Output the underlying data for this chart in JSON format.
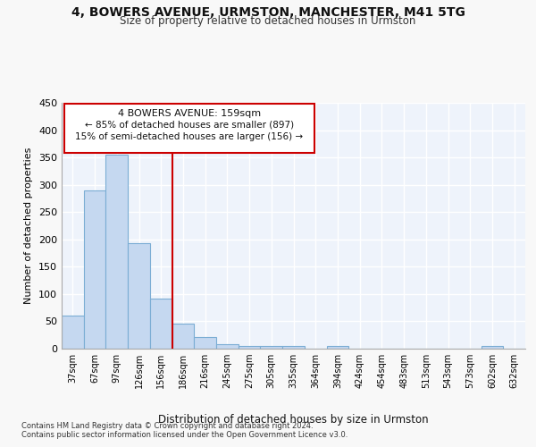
{
  "title1": "4, BOWERS AVENUE, URMSTON, MANCHESTER, M41 5TG",
  "title2": "Size of property relative to detached houses in Urmston",
  "xlabel": "Distribution of detached houses by size in Urmston",
  "ylabel": "Number of detached properties",
  "bar_labels": [
    "37sqm",
    "67sqm",
    "97sqm",
    "126sqm",
    "156sqm",
    "186sqm",
    "216sqm",
    "245sqm",
    "275sqm",
    "305sqm",
    "335sqm",
    "364sqm",
    "394sqm",
    "424sqm",
    "454sqm",
    "483sqm",
    "513sqm",
    "543sqm",
    "573sqm",
    "602sqm",
    "632sqm"
  ],
  "bar_values": [
    60,
    290,
    355,
    193,
    91,
    46,
    21,
    9,
    5,
    5,
    5,
    0,
    5,
    0,
    0,
    0,
    0,
    0,
    0,
    5,
    0
  ],
  "bar_color": "#c5d8f0",
  "bar_edge_color": "#7badd4",
  "fig_facecolor": "#f8f8f8",
  "ax_facecolor": "#eef3fb",
  "grid_color": "#ffffff",
  "red_line_x": 4.5,
  "annotation_text1": "4 BOWERS AVENUE: 159sqm",
  "annotation_text2": "← 85% of detached houses are smaller (897)",
  "annotation_text3": "15% of semi-detached houses are larger (156) →",
  "annotation_box_facecolor": "#ffffff",
  "annotation_border_color": "#cc0000",
  "ylim": [
    0,
    450
  ],
  "yticks": [
    0,
    50,
    100,
    150,
    200,
    250,
    300,
    350,
    400,
    450
  ],
  "footnote1": "Contains HM Land Registry data © Crown copyright and database right 2024.",
  "footnote2": "Contains public sector information licensed under the Open Government Licence v3.0."
}
